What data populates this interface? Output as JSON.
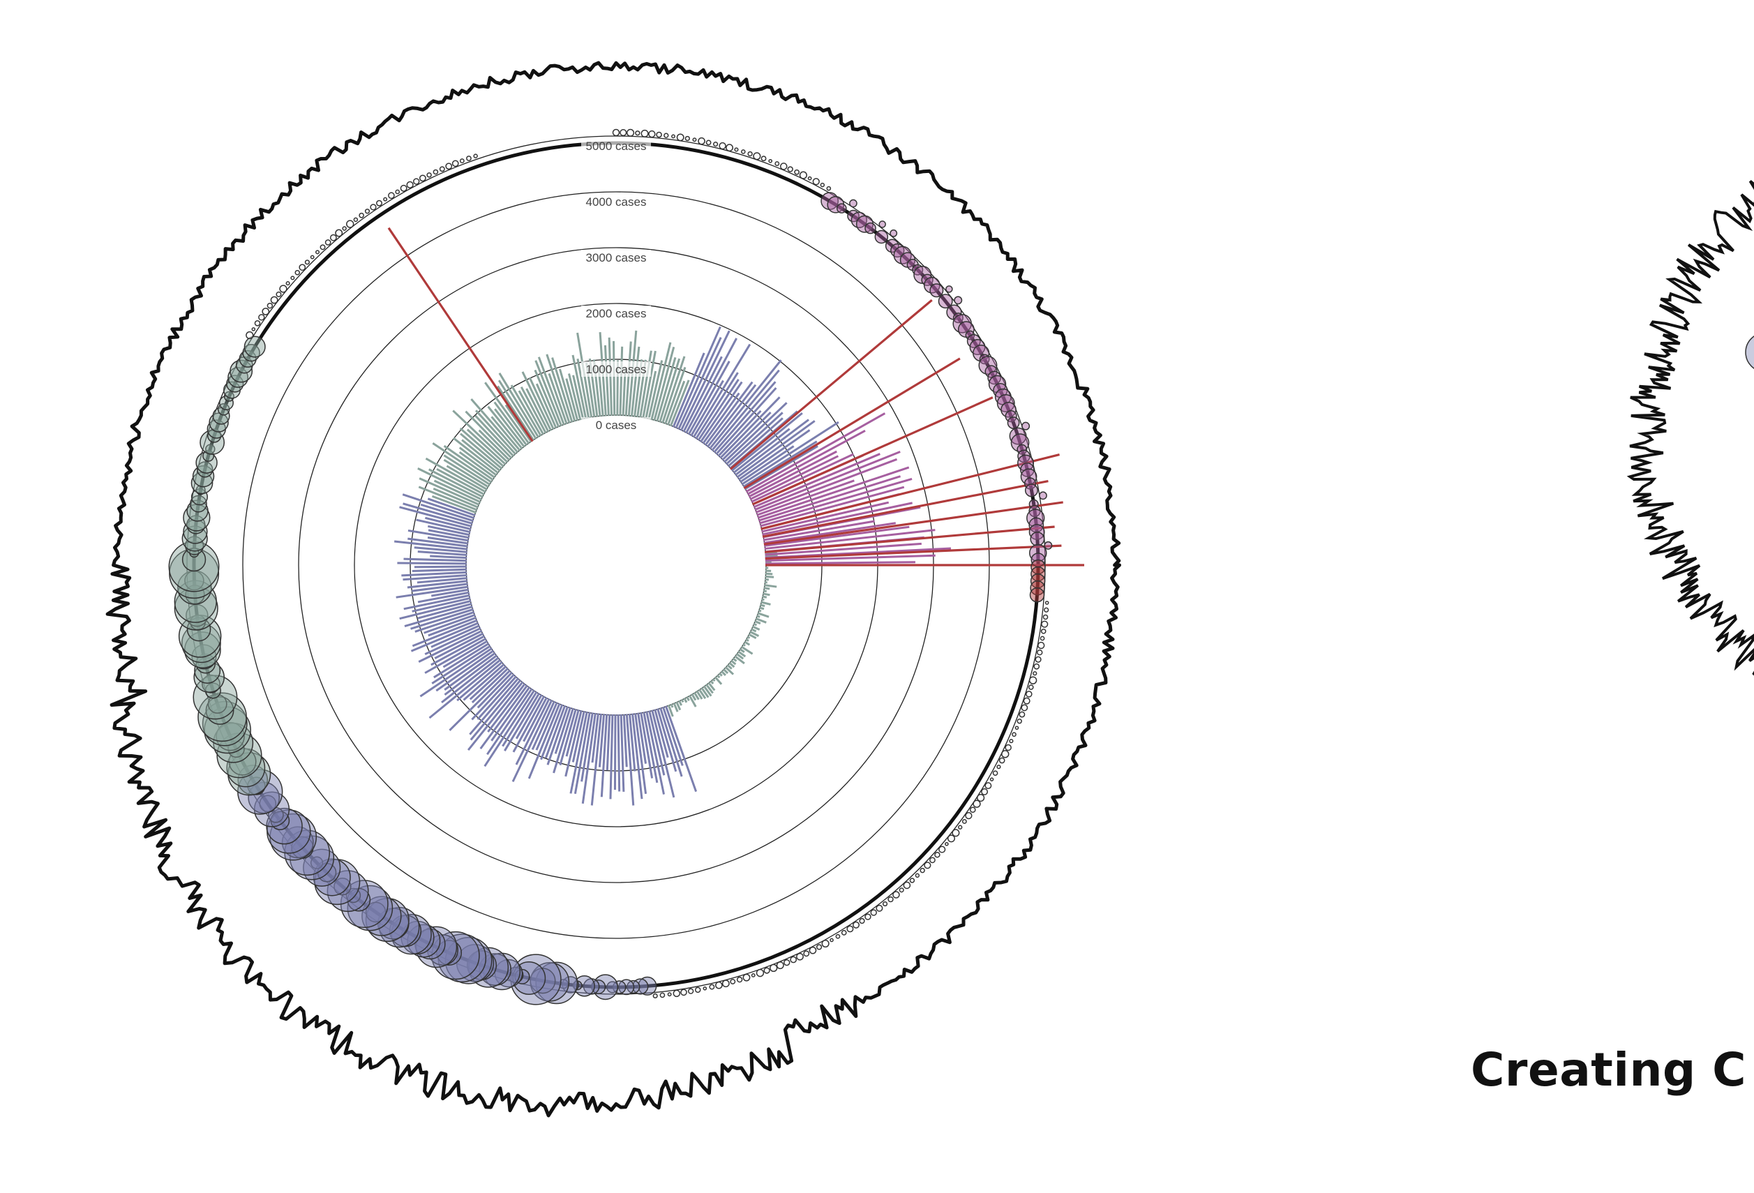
{
  "caption": "Creating C",
  "colors": {
    "early": "#8aa39c",
    "mid": "#7b7fae",
    "late": "#a65fa0",
    "peak": "#b03a3a",
    "outline": "#111111"
  },
  "chart_data": {
    "type": "radial-bar",
    "title": "",
    "ring_labels": [
      "0 cases",
      "1000 cases",
      "2000 cases",
      "3000 cases",
      "4000 cases",
      "5000 cases"
    ],
    "rings": [
      0,
      1000,
      2000,
      3000,
      4000,
      5000
    ],
    "rlim": [
      0,
      5000
    ],
    "grid": true,
    "legend": "none",
    "series": [
      {
        "sectors": [
          {
            "from_angle": -5,
            "to_angle": 70,
            "base": 120,
            "amp": 110,
            "color": "early"
          },
          {
            "from_angle": 70,
            "to_angle": 150,
            "base": 1250,
            "amp": 400,
            "color": "mid"
          },
          {
            "from_angle": 150,
            "to_angle": 200,
            "base": 1000,
            "amp": 350,
            "color": "mid"
          },
          {
            "from_angle": 200,
            "to_angle": 260,
            "base": 1050,
            "amp": 300,
            "color": "early"
          },
          {
            "from_angle": 260,
            "to_angle": 292,
            "base": 1200,
            "amp": 400,
            "color": "early"
          },
          {
            "from_angle": 292,
            "to_angle": 330,
            "base": 1600,
            "amp": 500,
            "color": "mid"
          },
          {
            "from_angle": 330,
            "to_angle": 352,
            "base": 2300,
            "amp": 600,
            "color": "late"
          },
          {
            "from_angle": 352,
            "to_angle": 360,
            "base": 3000,
            "amp": 400,
            "color": "late"
          }
        ],
        "peaks": [
          {
            "angle": 0,
            "value": 5700
          },
          {
            "angle": 2.5,
            "value": 5300
          },
          {
            "angle": 5,
            "value": 5200
          },
          {
            "angle": 8,
            "value": 5400
          },
          {
            "angle": 11,
            "value": 5200
          },
          {
            "angle": 14,
            "value": 5500
          },
          {
            "angle": 24,
            "value": 4700
          },
          {
            "angle": 31,
            "value": 4500
          },
          {
            "angle": 40,
            "value": 4700
          },
          {
            "angle": 124,
            "value": 4600
          }
        ]
      }
    ]
  }
}
